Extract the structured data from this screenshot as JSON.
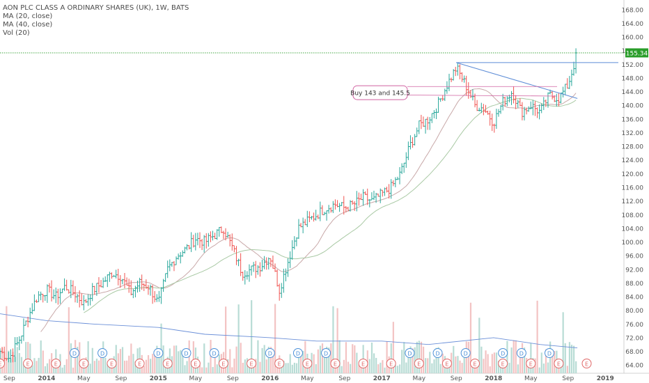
{
  "header": {
    "title": "AON PLC CLASS A ORDINARY SHARES (UK), 1W, BATS",
    "studies": [
      "MA (20, close)",
      "MA (40, close)",
      "Vol (20)"
    ]
  },
  "colors": {
    "up": "#26a69a",
    "down": "#ef5350",
    "ma_fast": "#c8a8a8",
    "ma_slow": "#a9c9a4",
    "vol_ma": "#6a8fd8",
    "price_line": "#2a9d2a",
    "trendline": "#5b8bd6",
    "annotation": "#d060a0"
  },
  "chart_data": {
    "type": "ohlc",
    "ylim": [
      62,
      170
    ],
    "y_ticks": [
      "64.00",
      "68.00",
      "72.00",
      "76.00",
      "80.00",
      "84.00",
      "88.00",
      "92.00",
      "96.00",
      "100.00",
      "104.00",
      "108.00",
      "112.00",
      "116.00",
      "120.00",
      "124.00",
      "128.00",
      "132.00",
      "136.00",
      "140.00",
      "144.00",
      "148.00",
      "152.00",
      "156.00",
      "160.00",
      "164.00",
      "168.00"
    ],
    "x_ticks": [
      {
        "label": "Sep",
        "date": "2013-09"
      },
      {
        "label": "2014",
        "date": "2014-01"
      },
      {
        "label": "May",
        "date": "2014-05"
      },
      {
        "label": "Sep",
        "date": "2014-09"
      },
      {
        "label": "2015",
        "date": "2015-01"
      },
      {
        "label": "May",
        "date": "2015-05"
      },
      {
        "label": "Sep",
        "date": "2015-09"
      },
      {
        "label": "2016",
        "date": "2016-01"
      },
      {
        "label": "May",
        "date": "2016-05"
      },
      {
        "label": "Sep",
        "date": "2016-09"
      },
      {
        "label": "2017",
        "date": "2017-01"
      },
      {
        "label": "May",
        "date": "2017-05"
      },
      {
        "label": "Sep",
        "date": "2017-09"
      },
      {
        "label": "2018",
        "date": "2018-01"
      },
      {
        "label": "May",
        "date": "2018-05"
      },
      {
        "label": "Sep",
        "date": "2018-09"
      },
      {
        "label": "2019",
        "date": "2019-01"
      }
    ],
    "x_range": [
      "2013-08",
      "2019-03"
    ],
    "price_path": [
      [
        "2013-08",
        68
      ],
      [
        "2013-09",
        66
      ],
      [
        "2013-10",
        71
      ],
      [
        "2013-11",
        78
      ],
      [
        "2013-12",
        84
      ],
      [
        "2014-01",
        86
      ],
      [
        "2014-02",
        84
      ],
      [
        "2014-03",
        87
      ],
      [
        "2014-04",
        85
      ],
      [
        "2014-05",
        82
      ],
      [
        "2014-06",
        86
      ],
      [
        "2014-07",
        88
      ],
      [
        "2014-08",
        91
      ],
      [
        "2014-09",
        90
      ],
      [
        "2014-10",
        85
      ],
      [
        "2014-11",
        88
      ],
      [
        "2014-12",
        87
      ],
      [
        "2015-01",
        82
      ],
      [
        "2015-02",
        92
      ],
      [
        "2015-03",
        96
      ],
      [
        "2015-04",
        98
      ],
      [
        "2015-05",
        101
      ],
      [
        "2015-06",
        100
      ],
      [
        "2015-07",
        102
      ],
      [
        "2015-08",
        104
      ],
      [
        "2015-09",
        98
      ],
      [
        "2015-10",
        91
      ],
      [
        "2015-11",
        92
      ],
      [
        "2015-12",
        93
      ],
      [
        "2016-01",
        96
      ],
      [
        "2016-02",
        86
      ],
      [
        "2016-03",
        95
      ],
      [
        "2016-04",
        104
      ],
      [
        "2016-05",
        106
      ],
      [
        "2016-06",
        108
      ],
      [
        "2016-07",
        110
      ],
      [
        "2016-08",
        111
      ],
      [
        "2016-09",
        110
      ],
      [
        "2016-10",
        111
      ],
      [
        "2016-11",
        113
      ],
      [
        "2016-12",
        112
      ],
      [
        "2017-01",
        114
      ],
      [
        "2017-02",
        116
      ],
      [
        "2017-03",
        120
      ],
      [
        "2017-04",
        128
      ],
      [
        "2017-05",
        134
      ],
      [
        "2017-06",
        136
      ],
      [
        "2017-07",
        140
      ],
      [
        "2017-08",
        146
      ],
      [
        "2017-09",
        151
      ],
      [
        "2017-10",
        146
      ],
      [
        "2017-11",
        140
      ],
      [
        "2017-12",
        139
      ],
      [
        "2018-01",
        135
      ],
      [
        "2018-02",
        141
      ],
      [
        "2018-03",
        144
      ],
      [
        "2018-04",
        138
      ],
      [
        "2018-05",
        140
      ],
      [
        "2018-06",
        138
      ],
      [
        "2018-07",
        143
      ],
      [
        "2018-08",
        142
      ],
      [
        "2018-09",
        146
      ],
      [
        "2018-10",
        155.34
      ]
    ],
    "last_price": "155.34",
    "volume_ma_path": [
      [
        "2013-08",
        79
      ],
      [
        "2014-01",
        77
      ],
      [
        "2014-06",
        76
      ],
      [
        "2015-01",
        75
      ],
      [
        "2015-06",
        73
      ],
      [
        "2016-01",
        72
      ],
      [
        "2016-06",
        71
      ],
      [
        "2017-01",
        71
      ],
      [
        "2017-06",
        70
      ],
      [
        "2018-01",
        72
      ],
      [
        "2018-06",
        70
      ],
      [
        "2018-10",
        69
      ]
    ],
    "events": {
      "earnings_label": "E",
      "dividend_label": "D",
      "earnings_dates": [
        "2013-08",
        "2013-11",
        "2014-02",
        "2014-05",
        "2014-08",
        "2014-11",
        "2015-02",
        "2015-05",
        "2015-08",
        "2015-11",
        "2016-02",
        "2016-05",
        "2016-08",
        "2016-11",
        "2017-02",
        "2017-05",
        "2017-08",
        "2017-11",
        "2018-02",
        "2018-05",
        "2018-08",
        "2018-11"
      ],
      "dividend_dates": [
        "2014-04",
        "2014-07",
        "2015-01",
        "2015-04",
        "2015-07",
        "2016-01",
        "2016-04",
        "2016-07",
        "2017-04",
        "2017-07",
        "2017-10",
        "2018-02",
        "2018-04",
        "2018-07"
      ]
    },
    "annotations": {
      "callout_text": "Buy 143 and 145.5",
      "resistance_level": 152.5,
      "trendline_start": [
        "2017-09",
        152.5
      ],
      "trendline_end": [
        "2018-10",
        142.0
      ],
      "buy_line_a": 143,
      "buy_line_b": 145.5
    }
  }
}
